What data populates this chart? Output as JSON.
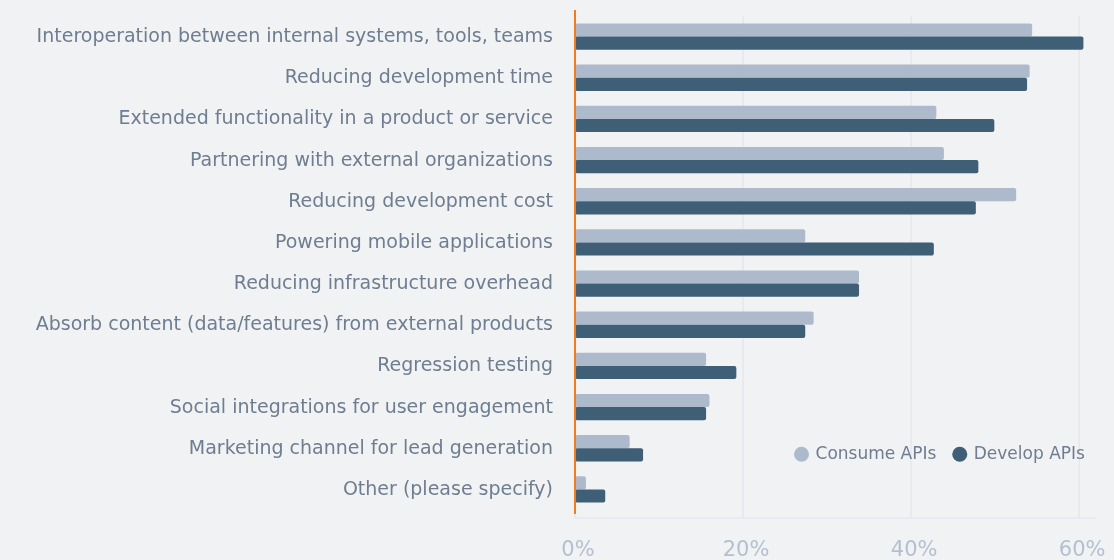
{
  "chart_data": {
    "type": "bar",
    "orientation": "horizontal",
    "categories": [
      "Interoperation between internal systems, tools, teams",
      "Reducing development time",
      "Extended functionality in a product or service",
      "Partnering with external organizations",
      "Reducing development cost",
      "Powering mobile applications",
      "Reducing infrastructure overhead",
      "Absorb content (data/features) from external products",
      "Regression testing",
      "Social integrations for user engagement",
      "Marketing channel for lead generation",
      "Other (please specify)"
    ],
    "series": [
      {
        "name": "Consume APIs",
        "color": "#adbacb",
        "values": [
          54.4,
          54.1,
          43.0,
          43.9,
          52.5,
          27.4,
          33.8,
          28.4,
          15.6,
          16.0,
          6.5,
          1.3
        ]
      },
      {
        "name": "Develop APIs",
        "color": "#3e5f75",
        "values": [
          60.5,
          53.8,
          49.9,
          48.0,
          47.7,
          42.7,
          33.8,
          27.4,
          19.2,
          15.6,
          8.1,
          3.6
        ]
      }
    ],
    "xlim": [
      0,
      62
    ],
    "xticks": [
      {
        "value": 0,
        "label": "0%"
      },
      {
        "value": 20,
        "label": "20%"
      },
      {
        "value": 40,
        "label": "40%"
      },
      {
        "value": 60,
        "label": "60%"
      }
    ],
    "grid": "x",
    "legend": "bottom right"
  }
}
